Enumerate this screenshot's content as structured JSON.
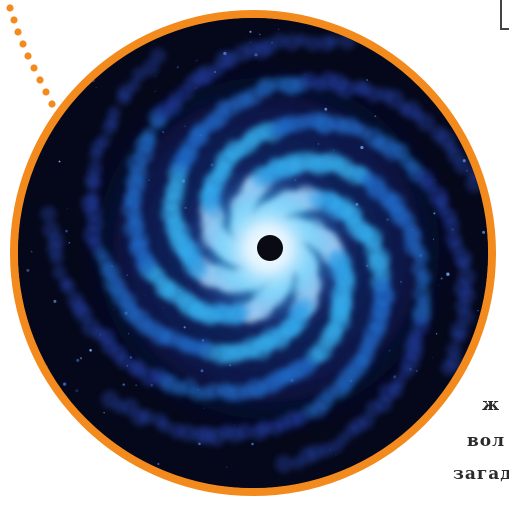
{
  "image": {
    "subject": "spiral-galaxy",
    "frame_color": "#f28a1e",
    "dots_color": "#f28a1e",
    "colors": {
      "space": "#05081a",
      "arm_outer": "#1d3fb8",
      "arm_mid": "#1f8fe0",
      "core": "#e8f6ff",
      "center_hole": "#0a0a12"
    }
  },
  "caption": {
    "line1": "ж",
    "line2": "вол",
    "line3": "загад"
  }
}
